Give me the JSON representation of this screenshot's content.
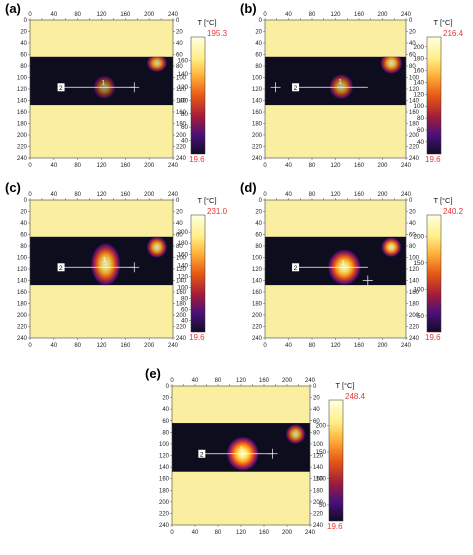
{
  "panels": [
    {
      "label": "(a)",
      "max": "195.3",
      "min": "19.6",
      "unit": "T [°C]",
      "cbar_ticks": [
        "160",
        "140",
        "120",
        "100",
        "80",
        "60",
        "40"
      ],
      "heat_main": [
        125,
        117
      ],
      "heat_main_r": [
        12,
        13
      ],
      "bright_main": 0.55,
      "heat_side": [
        213,
        75
      ],
      "heat_side_r": [
        11,
        10
      ],
      "bright_side": 0.8,
      "cursor_label": "1"
    },
    {
      "label": "(b)",
      "max": "216.4",
      "min": "19.6",
      "unit": "T [°C]",
      "cbar_ticks": [
        "200",
        "180",
        "160",
        "140",
        "120",
        "100",
        "80",
        "60",
        "40"
      ],
      "heat_main": [
        130,
        116
      ],
      "heat_main_r": [
        13,
        14
      ],
      "bright_main": 0.7,
      "heat_side": [
        215,
        75
      ],
      "heat_side_r": [
        12,
        12
      ],
      "bright_side": 0.85,
      "cursor_label": "1"
    },
    {
      "label": "(c)",
      "max": "231.0",
      "min": "19.6",
      "unit": "T [°C]",
      "cbar_ticks": [
        "200",
        "180",
        "160",
        "140",
        "120",
        "100",
        "80",
        "60",
        "40"
      ],
      "heat_main": [
        127,
        112
      ],
      "heat_main_r": [
        16,
        24
      ],
      "bright_main": 0.9,
      "heat_side": [
        213,
        82
      ],
      "heat_side_r": [
        11,
        12
      ],
      "bright_side": 0.85,
      "cursor_label": "1"
    },
    {
      "label": "(d)",
      "max": "240.2",
      "min": "19.6",
      "unit": "T [°C]",
      "cbar_ticks": [
        "200",
        "150",
        "100",
        "50"
      ],
      "heat_main": [
        135,
        117
      ],
      "heat_main_r": [
        18,
        20
      ],
      "bright_main": 0.95,
      "heat_side": [
        215,
        82
      ],
      "heat_side_r": [
        11,
        11
      ],
      "bright_side": 0.9,
      "cursor_label": "1"
    },
    {
      "label": "(e)",
      "max": "248.4",
      "min": "19.6",
      "unit": "T [°C]",
      "cbar_ticks": [
        "200",
        "150",
        "100",
        "50"
      ],
      "heat_main": [
        123,
        117
      ],
      "heat_main_r": [
        18,
        19
      ],
      "bright_main": 1.0,
      "heat_side": [
        215,
        83
      ],
      "heat_side_r": [
        11,
        11
      ],
      "bright_side": 0.8,
      "cursor_label": "1"
    }
  ],
  "x_ticks": [
    "0",
    "40",
    "80",
    "120",
    "160",
    "200",
    "240"
  ],
  "x_ticks_top": [
    "0",
    "20",
    "40",
    "60",
    "80",
    "100",
    "120",
    "140",
    "160",
    "180",
    "200",
    "220",
    "240"
  ],
  "y_ticks": [
    "0",
    "20",
    "40",
    "60",
    "80",
    "100",
    "120",
    "140",
    "160",
    "180",
    "200",
    "220",
    "240"
  ],
  "line_label": "2",
  "colors": {
    "sand": "#faeea1",
    "dark_band": "#0d0d1e",
    "frame": "#444444",
    "max_text": "#ee3333"
  }
}
